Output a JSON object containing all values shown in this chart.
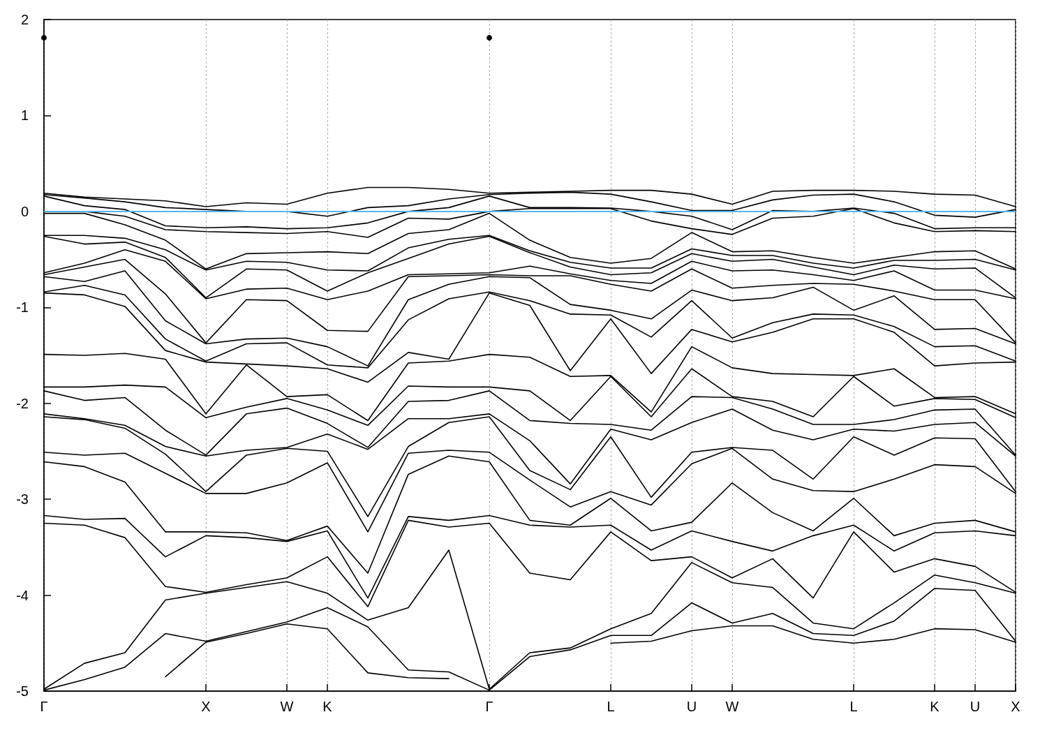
{
  "chart_data": {
    "type": "line",
    "categories": [
      "Γ",
      null,
      null,
      null,
      "X",
      null,
      "W",
      "K",
      null,
      null,
      null,
      "Γ",
      null,
      null,
      "L",
      null,
      "U",
      "W",
      null,
      null,
      "L",
      null,
      "K",
      "U",
      "X"
    ],
    "ylim": [
      -5,
      2
    ],
    "yticks": [
      -5,
      -4,
      -3,
      -2,
      -1,
      0,
      1,
      2
    ],
    "grid": "x",
    "ref_lines": [
      {
        "axis": "y",
        "value": 0,
        "color": "#56b4e9"
      }
    ],
    "series": [
      {
        "color": "#000000",
        "marker": "circle",
        "values": [
          1.81,
          null,
          null,
          null,
          null,
          null,
          null,
          null,
          null,
          null,
          null,
          1.81,
          null,
          null,
          null,
          null,
          null,
          null,
          null,
          null,
          null,
          null,
          null,
          null,
          null
        ]
      },
      {
        "color": "#000000",
        "values": [
          0.19,
          0.15,
          0.13,
          0.11,
          0.05,
          0.09,
          0.075,
          0.19,
          0.25,
          0.25,
          0.23,
          0.19,
          0.2,
          0.21,
          0.22,
          0.22,
          0.18,
          0.075,
          0.21,
          0.22,
          0.22,
          0.21,
          0.18,
          0.17,
          0.05
        ]
      },
      {
        "color": "#000000",
        "values": [
          0.175,
          0.14,
          0.1,
          0.04,
          0.02,
          0.0,
          0.0,
          -0.05,
          0.04,
          0.06,
          0.13,
          0.175,
          0.19,
          0.2,
          0.18,
          0.1,
          0.01,
          0.01,
          0.12,
          0.17,
          0.18,
          0.1,
          -0.04,
          -0.06,
          0.02
        ]
      },
      {
        "color": "#000000",
        "values": [
          0.16,
          0.06,
          0.02,
          -0.15,
          -0.17,
          -0.16,
          -0.18,
          -0.17,
          -0.12,
          0.0,
          0.04,
          0.16,
          0.04,
          0.04,
          0.035,
          0.0,
          -0.05,
          -0.19,
          0.01,
          0.0,
          0.035,
          -0.02,
          -0.18,
          -0.17,
          -0.17
        ]
      },
      {
        "color": "#000000",
        "values": [
          0.0,
          0.0,
          -0.05,
          -0.19,
          -0.21,
          -0.22,
          -0.23,
          -0.21,
          -0.27,
          -0.07,
          -0.08,
          0.0,
          0.03,
          0.03,
          0.03,
          -0.1,
          -0.18,
          -0.24,
          -0.07,
          -0.05,
          0.03,
          -0.12,
          -0.21,
          -0.2,
          -0.21
        ]
      },
      {
        "color": "#000000",
        "values": [
          -0.02,
          -0.02,
          -0.14,
          -0.3,
          -0.6,
          -0.44,
          -0.43,
          -0.42,
          -0.44,
          -0.23,
          -0.19,
          -0.02,
          -0.3,
          -0.48,
          -0.54,
          -0.49,
          -0.22,
          -0.42,
          -0.41,
          -0.48,
          -0.54,
          -0.48,
          -0.42,
          -0.41,
          -0.6
        ]
      },
      {
        "color": "#000000",
        "values": [
          -0.25,
          -0.25,
          -0.28,
          -0.4,
          -0.61,
          -0.52,
          -0.53,
          -0.61,
          -0.62,
          -0.38,
          -0.29,
          -0.25,
          -0.41,
          -0.53,
          -0.59,
          -0.59,
          -0.39,
          -0.46,
          -0.46,
          -0.54,
          -0.59,
          -0.51,
          -0.51,
          -0.5,
          -0.61
        ]
      },
      {
        "color": "#000000",
        "values": [
          -0.26,
          -0.34,
          -0.32,
          -0.48,
          -0.9,
          -0.6,
          -0.61,
          -0.83,
          -0.64,
          -0.49,
          -0.34,
          -0.26,
          -0.43,
          -0.58,
          -0.66,
          -0.64,
          -0.44,
          -0.52,
          -0.5,
          -0.58,
          -0.66,
          -0.56,
          -0.6,
          -0.59,
          -0.9
        ]
      },
      {
        "color": "#000000",
        "values": [
          -0.64,
          -0.54,
          -0.4,
          -0.52,
          -0.91,
          -0.81,
          -0.8,
          -0.92,
          -0.83,
          -0.66,
          -0.65,
          -0.64,
          -0.57,
          -0.65,
          -0.72,
          -0.75,
          -0.52,
          -0.62,
          -0.61,
          -0.66,
          -0.72,
          -0.62,
          -0.82,
          -0.82,
          -0.91
        ]
      },
      {
        "color": "#000000",
        "values": [
          -0.66,
          -0.58,
          -0.5,
          -0.86,
          -1.37,
          -0.92,
          -0.93,
          -1.24,
          -1.25,
          -0.68,
          -0.67,
          -0.66,
          -0.67,
          -0.67,
          -0.76,
          -0.83,
          -0.6,
          -0.8,
          -0.77,
          -0.75,
          -0.76,
          -0.83,
          -0.92,
          -0.92,
          -1.37
        ]
      },
      {
        "color": "#000000",
        "values": [
          -0.68,
          -0.73,
          -0.62,
          -1.14,
          -1.38,
          -1.33,
          -1.32,
          -1.41,
          -1.61,
          -0.92,
          -0.76,
          -0.68,
          -0.69,
          -0.97,
          -1.03,
          -1.12,
          -0.82,
          -0.93,
          -0.9,
          -0.79,
          -1.03,
          -0.88,
          -1.23,
          -1.22,
          -1.38
        ]
      },
      {
        "color": "#000000",
        "values": [
          -0.84,
          -0.77,
          -0.87,
          -1.33,
          -1.56,
          -1.38,
          -1.37,
          -1.6,
          -1.63,
          -1.13,
          -0.91,
          -0.84,
          -0.93,
          -1.07,
          -1.08,
          -1.31,
          -0.93,
          -1.32,
          -1.16,
          -1.07,
          -1.08,
          -1.2,
          -1.41,
          -1.4,
          -1.56
        ]
      },
      {
        "color": "#000000",
        "values": [
          -0.85,
          -0.87,
          -0.99,
          -1.45,
          -1.57,
          -1.59,
          -1.61,
          -1.64,
          -1.78,
          -1.47,
          -1.54,
          -0.85,
          -0.98,
          -1.66,
          -1.12,
          -1.69,
          -1.23,
          -1.36,
          -1.26,
          -1.12,
          -1.12,
          -1.26,
          -1.61,
          -1.58,
          -1.57
        ]
      },
      {
        "color": "#000000",
        "values": [
          -1.49,
          -1.5,
          -1.48,
          -1.54,
          -2.11,
          -1.6,
          -1.93,
          -1.91,
          -2.18,
          -1.58,
          -1.56,
          -1.49,
          -1.52,
          -1.72,
          -1.71,
          -2.09,
          -1.41,
          -1.63,
          -1.69,
          -1.7,
          -1.71,
          -1.64,
          -1.94,
          -1.93,
          -2.11
        ]
      },
      {
        "color": "#000000",
        "values": [
          -1.83,
          -1.83,
          -1.81,
          -1.83,
          -2.15,
          -2.04,
          -1.95,
          -2.07,
          -2.23,
          -1.82,
          -1.83,
          -1.83,
          -1.87,
          -2.18,
          -1.72,
          -2.14,
          -1.64,
          -1.93,
          -1.98,
          -2.14,
          -1.72,
          -2.03,
          -1.95,
          -1.96,
          -2.15
        ]
      },
      {
        "color": "#000000",
        "values": [
          -1.87,
          -1.97,
          -1.94,
          -2.28,
          -2.54,
          -2.11,
          -2.05,
          -2.21,
          -2.46,
          -1.98,
          -1.97,
          -1.87,
          -2.18,
          -2.21,
          -2.22,
          -2.28,
          -1.93,
          -1.94,
          -2.06,
          -2.22,
          -2.22,
          -2.17,
          -2.07,
          -2.06,
          -2.54
        ]
      },
      {
        "color": "#000000",
        "values": [
          -2.11,
          -2.16,
          -2.23,
          -2.45,
          -2.55,
          -2.49,
          -2.46,
          -2.32,
          -2.48,
          -2.16,
          -2.16,
          -2.11,
          -2.39,
          -2.84,
          -2.27,
          -2.38,
          -2.2,
          -2.06,
          -2.28,
          -2.38,
          -2.27,
          -2.29,
          -2.22,
          -2.2,
          -2.55
        ]
      },
      {
        "color": "#000000",
        "values": [
          -2.14,
          -2.17,
          -2.26,
          -2.53,
          -2.92,
          -2.54,
          -2.47,
          -2.5,
          -3.18,
          -2.45,
          -2.2,
          -2.14,
          -2.7,
          -2.9,
          -2.35,
          -2.98,
          -2.51,
          -2.46,
          -2.49,
          -2.79,
          -2.35,
          -2.54,
          -2.36,
          -2.37,
          -2.92
        ]
      },
      {
        "color": "#000000",
        "values": [
          -2.51,
          -2.54,
          -2.52,
          -2.73,
          -2.94,
          -2.94,
          -2.83,
          -2.62,
          -3.34,
          -2.52,
          -2.49,
          -2.51,
          -2.8,
          -3.08,
          -2.92,
          -3.06,
          -2.63,
          -2.47,
          -2.79,
          -2.91,
          -2.92,
          -2.79,
          -2.64,
          -2.66,
          -2.94
        ]
      },
      {
        "color": "#000000",
        "values": [
          -2.61,
          -2.66,
          -2.82,
          -3.34,
          -3.34,
          -3.35,
          -3.43,
          -3.28,
          -3.77,
          -2.74,
          -2.55,
          -2.61,
          -3.22,
          -3.27,
          -2.99,
          -3.33,
          -3.24,
          -2.83,
          -3.14,
          -3.33,
          -2.99,
          -3.38,
          -3.25,
          -3.22,
          -3.34
        ]
      },
      {
        "color": "#000000",
        "values": [
          -3.17,
          -3.21,
          -3.2,
          -3.6,
          -3.38,
          -3.4,
          -3.44,
          -3.33,
          -4.03,
          -3.18,
          -3.22,
          -3.17,
          -3.27,
          -3.29,
          -3.27,
          -3.53,
          -3.33,
          -3.44,
          -3.54,
          -3.38,
          -3.27,
          -3.54,
          -3.35,
          -3.33,
          -3.38
        ]
      },
      {
        "color": "#000000",
        "values": [
          -3.25,
          -3.27,
          -3.4,
          -3.91,
          -3.97,
          -3.89,
          -3.82,
          -3.6,
          -4.12,
          -3.22,
          -3.29,
          -3.25,
          -3.77,
          -3.84,
          -3.34,
          -3.64,
          -3.6,
          -3.82,
          -3.62,
          -4.03,
          -3.34,
          -3.76,
          -3.62,
          -3.7,
          -3.97
        ]
      },
      {
        "color": "#000000",
        "values": [
          -4.98,
          -4.71,
          -4.6,
          -4.05,
          -3.98,
          -3.92,
          -3.86,
          -3.98,
          -4.26,
          -4.13,
          -3.53,
          -4.98,
          -4.6,
          -4.55,
          -4.35,
          -4.19,
          -3.66,
          -3.87,
          -3.92,
          -4.29,
          -4.35,
          -4.08,
          -3.79,
          -3.87,
          -3.98
        ]
      },
      {
        "color": "#000000",
        "values": [
          -4.99,
          -4.88,
          -4.75,
          -4.4,
          -4.48,
          -4.38,
          -4.28,
          -4.13,
          -4.33,
          -4.78,
          -4.8,
          -4.99,
          -4.64,
          -4.57,
          -4.42,
          -4.42,
          -4.08,
          -4.29,
          -4.19,
          -4.4,
          -4.42,
          -4.27,
          -3.93,
          -3.95,
          -4.48
        ]
      },
      {
        "color": "#000000",
        "values": [
          null,
          null,
          null,
          -4.85,
          -4.49,
          -4.4,
          -4.3,
          -4.35,
          -4.81,
          -4.86,
          -4.87,
          null,
          null,
          null,
          -4.5,
          -4.48,
          -4.37,
          -4.32,
          -4.32,
          -4.46,
          -4.5,
          -4.46,
          -4.35,
          -4.36,
          -4.49
        ]
      }
    ]
  }
}
